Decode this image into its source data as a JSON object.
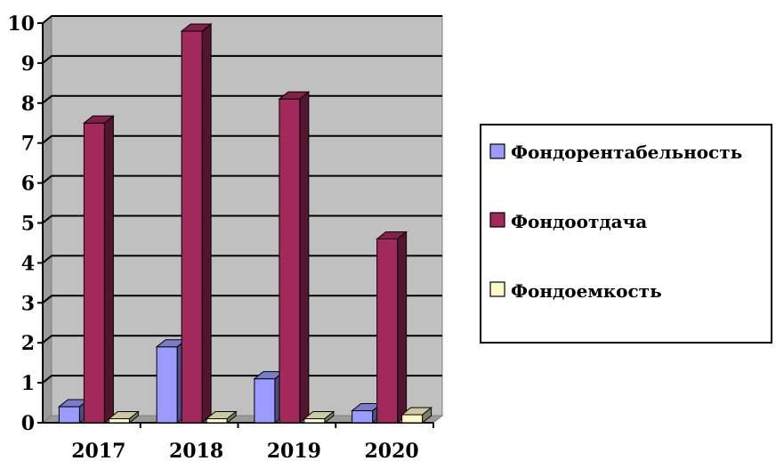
{
  "chart_data": {
    "type": "bar",
    "categories": [
      "2017",
      "2018",
      "2019",
      "2020"
    ],
    "series": [
      {
        "name": "Фондорентабельность",
        "color": "#9a9aff",
        "values": [
          0.4,
          1.9,
          1.1,
          0.3
        ]
      },
      {
        "name": "Фондоотдача",
        "color": "#a3285b",
        "values": [
          7.5,
          9.8,
          8.1,
          4.6
        ]
      },
      {
        "name": "Фондоемкость",
        "color": "#fffbc8",
        "values": [
          0.1,
          0.1,
          0.1,
          0.2
        ]
      }
    ],
    "y_ticks": [
      "0",
      "1",
      "2",
      "3",
      "4",
      "5",
      "6",
      "7",
      "8",
      "9",
      "10"
    ],
    "ylim": [
      0,
      10
    ],
    "grid": true,
    "three_d": true,
    "legend_position": "right",
    "title": "",
    "xlabel": "",
    "ylabel": ""
  }
}
